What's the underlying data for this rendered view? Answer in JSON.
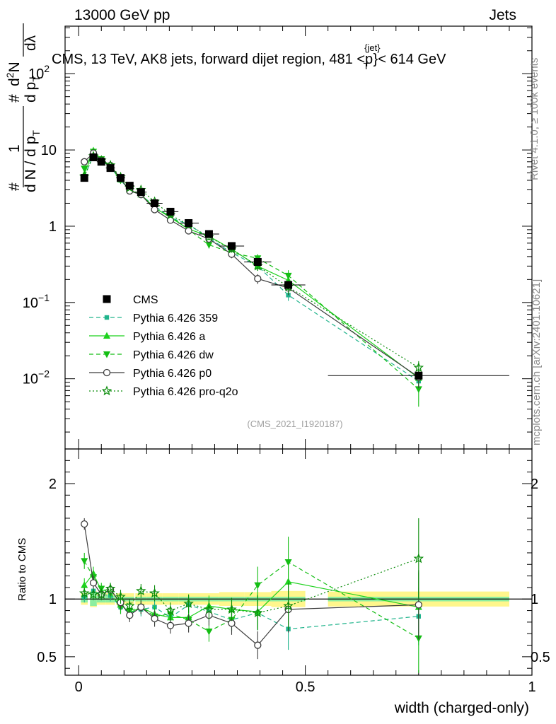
{
  "header": {
    "left": "13000 GeV pp",
    "right": "Jets",
    "title_main": "CMS, 13 TeV, AK8 jets, forward dijet region, 481 <",
    "title_p": "p",
    "title_sup": "{jet}",
    "title_sub": "T",
    "title_end": "}< 614 GeV"
  },
  "side": {
    "rivet": "Rivet 4.1.0, ≥ 100k events",
    "mcplots": "mcplots.cern.ch [arXiv:2401.10621]"
  },
  "ref_label": "(CMS_2021_I1920187)",
  "ylabel_main": {
    "prefix": "#",
    "one": "1",
    "denom": "d N / d p",
    "denom_sub": "T",
    "num_prefix": "#",
    "num": "d",
    "num_sup": "2",
    "num_rest": "N",
    "num_b": "d p",
    "num_b_sub": "T",
    "num_c": "dλ"
  },
  "ylabel_ratio": "Ratio to CMS",
  "xlabel": "width (charged-only)",
  "colors": {
    "cms": "#000000",
    "p359": "#20b48c",
    "pa": "#1ed21e",
    "pdw": "#14be14",
    "pp0": "#3c3c3c",
    "pq2o": "#0a8c0a",
    "band_outer": "#fff68c",
    "band_inner": "#8ceea0"
  },
  "chart_data": [
    {
      "type": "scatter",
      "panel": "main",
      "yscale": "log",
      "xlim": [
        -0.03,
        1.0
      ],
      "ylim": [
        0.0012,
        420
      ],
      "y_ticks": [
        {
          "value": 0.01,
          "base": "10",
          "exp": "−2"
        },
        {
          "value": 0.1,
          "base": "10",
          "exp": "−1"
        },
        {
          "value": 1,
          "base": "1",
          "exp": ""
        },
        {
          "value": 10,
          "base": "10",
          "exp": ""
        },
        {
          "value": 100,
          "base": "10",
          "exp": "2"
        }
      ],
      "x": [
        0.0125,
        0.0325,
        0.05,
        0.07,
        0.0925,
        0.1125,
        0.1375,
        0.1675,
        0.2025,
        0.2425,
        0.2875,
        0.3375,
        0.395,
        0.4625,
        0.75
      ],
      "x_halfwidths": [
        0.0075,
        0.0075,
        0.01,
        0.01,
        0.01,
        0.01,
        0.0125,
        0.0175,
        0.0175,
        0.0225,
        0.0225,
        0.0275,
        0.03,
        0.0375,
        0.2
      ],
      "series": [
        {
          "name": "CMS",
          "key": "cms",
          "marker": "square",
          "line": "none",
          "values": [
            4.3,
            8.0,
            7.0,
            5.8,
            4.3,
            3.4,
            2.8,
            2.0,
            1.55,
            1.1,
            0.79,
            0.55,
            0.34,
            0.17,
            0.011
          ],
          "errors": [
            0.25,
            0.4,
            0.35,
            0.3,
            0.2,
            0.18,
            0.15,
            0.1,
            0.08,
            0.06,
            0.04,
            0.03,
            0.025,
            0.015,
            0.0012
          ]
        },
        {
          "name": "Pythia 6.426 359",
          "key": "p359",
          "marker": "square-small",
          "line": "dashed",
          "values": [
            4.4,
            8.5,
            7.3,
            6.0,
            4.0,
            3.0,
            2.55,
            1.85,
            1.3,
            1.05,
            0.7,
            0.45,
            0.3,
            0.125,
            0.0093
          ],
          "errors": [
            0.3,
            0.4,
            0.35,
            0.3,
            0.25,
            0.2,
            0.18,
            0.15,
            0.1,
            0.08,
            0.06,
            0.05,
            0.04,
            0.02,
            0.002
          ]
        },
        {
          "name": "Pythia 6.426 a",
          "key": "pa",
          "marker": "triangle-up",
          "line": "solid",
          "values": [
            4.8,
            9.8,
            7.5,
            6.3,
            4.1,
            3.0,
            2.6,
            1.75,
            1.3,
            0.92,
            0.74,
            0.5,
            0.3,
            0.195,
            0.0102
          ],
          "errors": [
            0.3,
            0.5,
            0.4,
            0.3,
            0.25,
            0.2,
            0.18,
            0.15,
            0.1,
            0.08,
            0.06,
            0.05,
            0.04,
            0.03,
            0.003
          ]
        },
        {
          "name": "Pythia 6.426 dw",
          "key": "pdw",
          "marker": "triangle-down",
          "line": "dashed",
          "values": [
            5.7,
            9.5,
            7.6,
            6.1,
            4.0,
            3.05,
            2.6,
            1.7,
            1.35,
            0.9,
            0.57,
            0.45,
            0.38,
            0.225,
            0.0073
          ],
          "errors": [
            0.35,
            0.5,
            0.4,
            0.3,
            0.25,
            0.2,
            0.18,
            0.15,
            0.1,
            0.08,
            0.06,
            0.05,
            0.05,
            0.04,
            0.003
          ]
        },
        {
          "name": "Pythia 6.426 p0",
          "key": "pp0",
          "marker": "circle-open",
          "line": "solid",
          "values": [
            7.0,
            9.1,
            7.3,
            6.25,
            4.2,
            2.9,
            2.6,
            1.65,
            1.2,
            0.87,
            0.68,
            0.43,
            0.205,
            0.155,
            0.0105
          ],
          "errors": [
            0.35,
            0.5,
            0.4,
            0.3,
            0.25,
            0.2,
            0.18,
            0.15,
            0.1,
            0.08,
            0.06,
            0.05,
            0.03,
            0.03,
            0.003
          ]
        },
        {
          "name": "Pythia 6.426 pro-q2o",
          "key": "pq2o",
          "marker": "star-open",
          "line": "dotted",
          "values": [
            4.5,
            8.3,
            7.3,
            6.3,
            4.4,
            3.2,
            3.0,
            2.1,
            1.4,
            1.05,
            0.72,
            0.5,
            0.3,
            0.16,
            0.014
          ],
          "errors": [
            0.3,
            0.4,
            0.35,
            0.3,
            0.25,
            0.2,
            0.18,
            0.15,
            0.1,
            0.08,
            0.06,
            0.05,
            0.04,
            0.03,
            0.003
          ]
        }
      ]
    },
    {
      "type": "scatter",
      "panel": "ratio",
      "yscale": "linear",
      "xlim": [
        -0.03,
        1.0
      ],
      "ylim": [
        0.34,
        2.3
      ],
      "ylabel": "Ratio to CMS",
      "xlabel": "width (charged-only)",
      "y_ticks": [
        0.5,
        1,
        2
      ],
      "y_ticklabels": [
        "0.5",
        "1",
        "2"
      ],
      "x_ticks": [
        0,
        0.5,
        1
      ],
      "x_ticklabels": [
        "0",
        "0.5",
        "1"
      ],
      "band_outer": [
        0.05,
        0.07,
        0.05,
        0.05,
        0.05,
        0.05,
        0.05,
        0.05,
        0.05,
        0.05,
        0.05,
        0.06,
        0.06,
        0.07,
        0.065
      ],
      "band_inner": [
        0.03,
        0.06,
        0.03,
        0.03,
        0.02,
        0.02,
        0.02,
        0.02,
        0.02,
        0.02,
        0.02,
        0.02,
        0.02,
        0.02,
        0.02
      ],
      "series": [
        {
          "key": "p359",
          "values": [
            1.02,
            1.07,
            1.04,
            1.03,
            0.93,
            0.88,
            0.91,
            0.93,
            0.84,
            0.95,
            0.89,
            0.82,
            0.88,
            0.74,
            0.85
          ],
          "errors": [
            0.05,
            0.05,
            0.05,
            0.05,
            0.06,
            0.06,
            0.06,
            0.07,
            0.07,
            0.08,
            0.09,
            0.1,
            0.15,
            0.18,
            0.25
          ]
        },
        {
          "key": "pa",
          "values": [
            1.12,
            1.22,
            1.07,
            1.09,
            0.95,
            0.88,
            0.93,
            0.87,
            0.84,
            0.84,
            0.94,
            0.91,
            0.89,
            1.15,
            0.93
          ],
          "errors": [
            0.06,
            0.06,
            0.05,
            0.05,
            0.06,
            0.06,
            0.06,
            0.07,
            0.07,
            0.08,
            0.09,
            0.1,
            0.15,
            0.2,
            0.3
          ]
        },
        {
          "key": "pdw",
          "values": [
            1.33,
            1.19,
            1.09,
            1.05,
            0.93,
            0.9,
            0.93,
            0.85,
            0.87,
            0.82,
            0.72,
            0.82,
            1.12,
            1.32,
            0.66
          ],
          "errors": [
            0.07,
            0.06,
            0.05,
            0.05,
            0.06,
            0.06,
            0.06,
            0.07,
            0.07,
            0.08,
            0.09,
            0.1,
            0.16,
            0.22,
            0.3
          ]
        },
        {
          "key": "pp0",
          "values": [
            1.65,
            1.14,
            1.04,
            1.08,
            0.97,
            0.86,
            0.93,
            0.83,
            0.77,
            0.79,
            0.86,
            0.79,
            0.6,
            0.91,
            0.95
          ],
          "errors": [
            0.05,
            0.06,
            0.05,
            0.05,
            0.06,
            0.06,
            0.06,
            0.07,
            0.07,
            0.08,
            0.09,
            0.1,
            0.12,
            0.2,
            0.3
          ]
        },
        {
          "key": "pq2o",
          "values": [
            1.05,
            1.04,
            1.04,
            1.09,
            1.02,
            0.94,
            1.07,
            1.05,
            0.9,
            0.96,
            0.91,
            0.91,
            0.88,
            0.94,
            1.35
          ],
          "errors": [
            0.05,
            0.05,
            0.05,
            0.05,
            0.06,
            0.06,
            0.06,
            0.07,
            0.07,
            0.08,
            0.09,
            0.1,
            0.15,
            0.2,
            0.35
          ]
        }
      ]
    }
  ]
}
